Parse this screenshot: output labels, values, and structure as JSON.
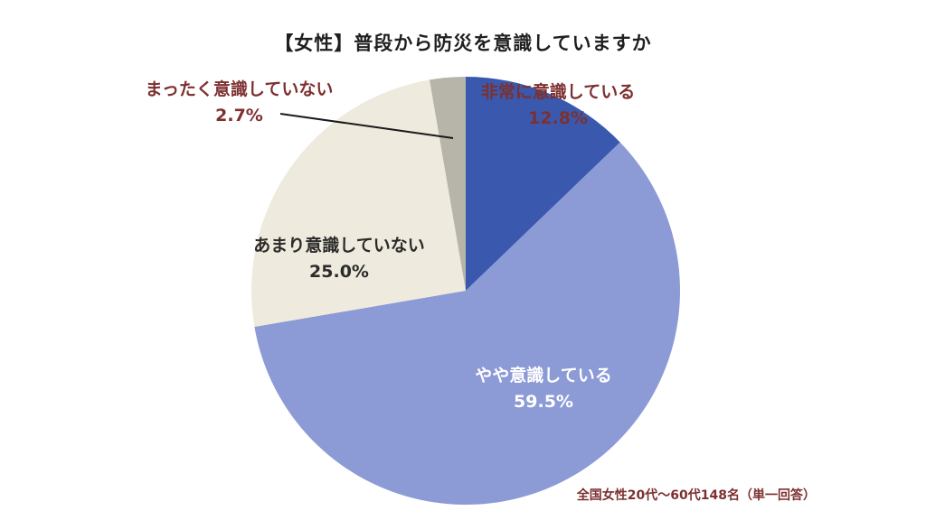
{
  "title": "【女性】普段から防災を意識していますか",
  "footnote": "全国女性20代〜60代148名（単一回答）",
  "colors": {
    "title": "#1f1f1f",
    "emphasis": "#7d3030",
    "dark": "#2b2b2b",
    "light": "#ffffff",
    "leader_line": "#1a1a1a"
  },
  "chart_data": {
    "type": "pie",
    "title": "【女性】普段から防災を意識していますか",
    "note": "全国女性20代〜60代148名（単一回答）",
    "direction": "clockwise",
    "start_angle_deg": 0,
    "categories": [
      "非常に意識している",
      "やや意識している",
      "あまり意識していない",
      "まったく意識していない"
    ],
    "values": [
      12.8,
      59.5,
      25.0,
      2.7
    ],
    "value_labels": [
      "12.8%",
      "59.5%",
      "25.0%",
      "2.7%"
    ],
    "slice_colors": [
      "#3a59ae",
      "#8c9ad6",
      "#eeeadd",
      "#b7b5a9"
    ],
    "label_placement": [
      "outside-top-right",
      "inside-bottom-right",
      "over-left-slice",
      "outside-top-left-with-leader"
    ]
  }
}
